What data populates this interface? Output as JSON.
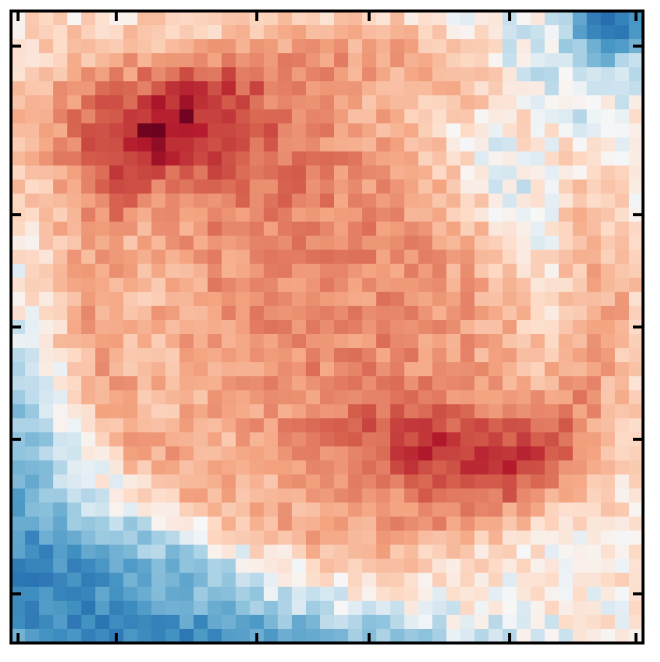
{
  "chart_data": {
    "type": "heatmap",
    "title": "",
    "xlabel": "",
    "ylabel": "",
    "colormap": "RdBu_r",
    "grid": false,
    "colorbar": false,
    "grid_shape": [
      45,
      45
    ],
    "x_range": [
      0,
      45
    ],
    "y_range": [
      0,
      45
    ],
    "value_range": [
      -1,
      1
    ],
    "field_model": {
      "background": 0.06,
      "ring": {
        "cx": 0.53,
        "cy": 0.45,
        "rx": 0.4,
        "ry": 0.37,
        "width": 0.07,
        "amplitude": 0.3
      },
      "interior": {
        "cx": 0.52,
        "cy": 0.45,
        "rx": 0.34,
        "ry": 0.33,
        "amplitude": 0.38
      },
      "upper_left_band": {
        "cx": 0.22,
        "cy": 0.18,
        "sx": 0.22,
        "sy": 0.12,
        "amplitude": 0.55
      },
      "lower_right_band": {
        "cx": 0.72,
        "cy": 0.7,
        "sx": 0.2,
        "sy": 0.08,
        "amplitude": 0.5
      },
      "upper_right_light": {
        "cx": 0.82,
        "cy": 0.22,
        "sx": 0.14,
        "sy": 0.18,
        "amplitude": -0.3
      },
      "lower_left_cold": {
        "cx": 0.1,
        "cy": 0.92,
        "sx": 0.28,
        "sy": 0.12,
        "amplitude": -0.55
      },
      "left_edge_cold": {
        "cx": 0.0,
        "cy": 0.72,
        "sx": 0.1,
        "sy": 0.2,
        "amplitude": -0.35
      },
      "bottom_edge_cold": {
        "cx": 0.4,
        "cy": 1.0,
        "sx": 0.35,
        "sy": 0.05,
        "amplitude": -0.4
      },
      "top_right_corner_cold": {
        "cx": 0.95,
        "cy": 0.02,
        "sx": 0.06,
        "sy": 0.06,
        "amplitude": -0.75
      },
      "noise_amplitude": 0.12,
      "seed": 7
    },
    "x_ticks": [
      0.5,
      7.5,
      17.5,
      25.5,
      35.5,
      44.5
    ],
    "y_ticks": [
      2.5,
      14.5,
      22.5,
      30.5,
      41.5
    ]
  }
}
